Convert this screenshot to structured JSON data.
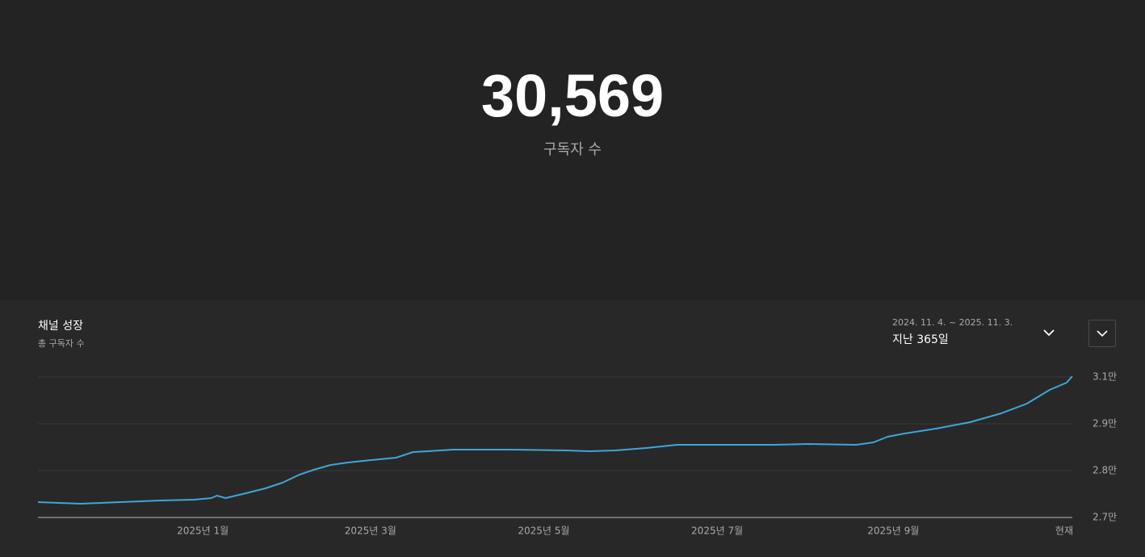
{
  "header": {
    "value": "30,569",
    "label": "구독자 수"
  },
  "panel": {
    "title": "채널 성장",
    "subtitle": "총 구독자 수",
    "date_range": "2024. 11. 4. ~ 2025. 11. 3.",
    "period": "지난 365일"
  },
  "chart_data": {
    "type": "line",
    "color": "#3ea6d8",
    "grid": true,
    "x": [
      0,
      15,
      29,
      43,
      55,
      61,
      63,
      66,
      72,
      80,
      86,
      92,
      97,
      103,
      109,
      117,
      126,
      132,
      137,
      146,
      166,
      186,
      194,
      203,
      214,
      225,
      237,
      248,
      259,
      271,
      288,
      294,
      299,
      305,
      316,
      328,
      339,
      348,
      356,
      362,
      364
    ],
    "values": [
      27610,
      27572,
      27610,
      27648,
      27667,
      27705,
      27762,
      27705,
      27800,
      27933,
      28066,
      28255,
      28369,
      28483,
      28540,
      28597,
      28653,
      28786,
      28805,
      28843,
      28843,
      28824,
      28805,
      28824,
      28881,
      28957,
      28957,
      28957,
      28957,
      28976,
      28957,
      29014,
      29147,
      29222,
      29336,
      29488,
      29697,
      29924,
      30247,
      30417,
      30569
    ],
    "xlim": [
      0,
      364
    ],
    "xticks": [
      {
        "value": 58,
        "label": "2025년 1월"
      },
      {
        "value": 117,
        "label": "2025년 3월"
      },
      {
        "value": 178,
        "label": "2025년 5월"
      },
      {
        "value": 239,
        "label": "2025년 7월"
      },
      {
        "value": 301,
        "label": "2025년 9월"
      },
      {
        "value": 364,
        "label": "현재"
      }
    ],
    "ylim": [
      27250,
      30550
    ],
    "yticks": [
      {
        "value": 27250,
        "label": "2.7만"
      },
      {
        "value": 28350,
        "label": "2.8만"
      },
      {
        "value": 29450,
        "label": "2.9만"
      },
      {
        "value": 30550,
        "label": "3.1만"
      }
    ]
  }
}
